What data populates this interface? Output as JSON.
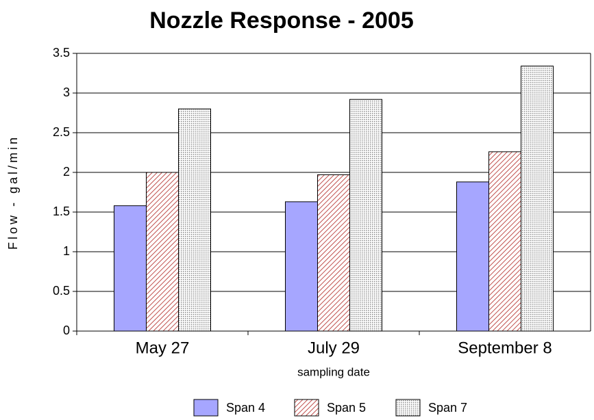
{
  "chart_data": {
    "type": "bar",
    "title": "Nozzle Response - 2005",
    "x_label": "sampling date",
    "y_label": "Flow - gal/min",
    "categories": [
      "May 27",
      "July 29",
      "September 8"
    ],
    "series": [
      {
        "name": "Span 4",
        "color": "#a6a6ff",
        "pattern": "solid",
        "values": [
          1.58,
          1.63,
          1.88
        ]
      },
      {
        "name": "Span 5",
        "color": "#c0504d",
        "pattern": "diagonal",
        "values": [
          2.0,
          1.97,
          2.26
        ]
      },
      {
        "name": "Span 7",
        "color": "#8c8c8c",
        "pattern": "dots",
        "values": [
          2.8,
          2.92,
          3.34
        ]
      }
    ],
    "ylim": [
      0,
      3.5
    ],
    "yticks": [
      0,
      0.5,
      1,
      1.5,
      2,
      2.5,
      3,
      3.5
    ],
    "grid": true,
    "legend": "bottom"
  }
}
